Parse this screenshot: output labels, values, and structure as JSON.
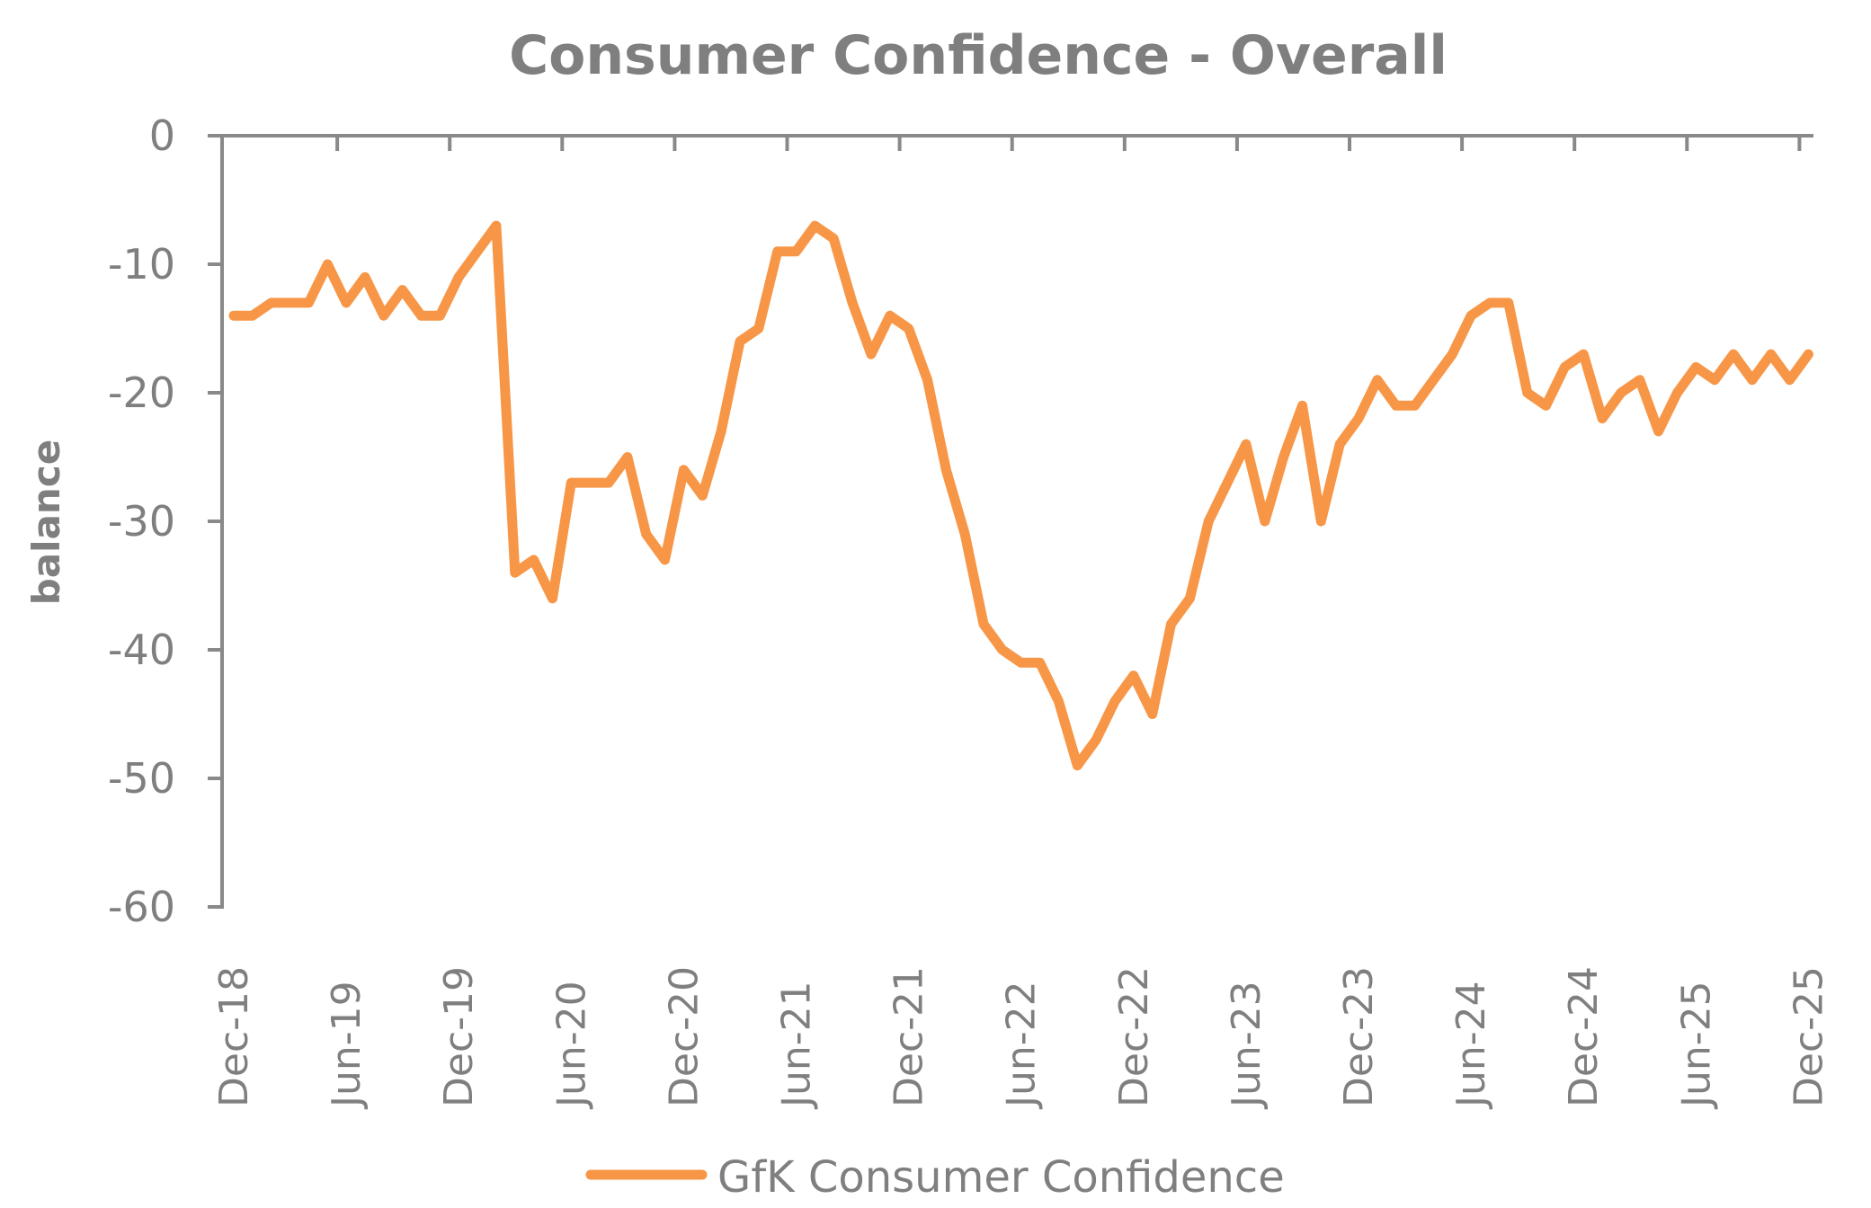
{
  "chart_data": {
    "type": "line",
    "title": "Consumer Confidence - Overall",
    "xlabel": "",
    "ylabel": "balance",
    "ylim": [
      -60,
      0
    ],
    "yticks": [
      0,
      -10,
      -20,
      -30,
      -40,
      -50,
      -60
    ],
    "ytick_labels": [
      "0",
      "-10",
      "-20",
      "-30",
      "-40",
      "-50",
      "-60"
    ],
    "xtick_labels": [
      "Dec-18",
      "Jun-19",
      "Dec-19",
      "Jun-20",
      "Dec-20",
      "Jun-21",
      "Dec-21",
      "Jun-22",
      "Dec-22",
      "Jun-23",
      "Dec-23",
      "Jun-24",
      "Dec-24",
      "Jun-25",
      "Dec-25"
    ],
    "xtick_every_months": 6,
    "x_start": "Dec-18",
    "x_end": "Dec-25",
    "x_axis_position": "top (at y=0)",
    "grid": false,
    "legend_position": "bottom-center",
    "series": [
      {
        "name": "GfK Consumer Confidence",
        "color": "#f79646",
        "x": [
          "Dec-18",
          "Jan-19",
          "Feb-19",
          "Mar-19",
          "Apr-19",
          "May-19",
          "Jun-19",
          "Jul-19",
          "Aug-19",
          "Sep-19",
          "Oct-19",
          "Nov-19",
          "Dec-19",
          "Jan-20",
          "Feb-20",
          "Mar-20",
          "Apr-20",
          "May-20",
          "Jun-20",
          "Jul-20",
          "Aug-20",
          "Sep-20",
          "Oct-20",
          "Nov-20",
          "Dec-20",
          "Jan-21",
          "Feb-21",
          "Mar-21",
          "Apr-21",
          "May-21",
          "Jun-21",
          "Jul-21",
          "Aug-21",
          "Sep-21",
          "Oct-21",
          "Nov-21",
          "Dec-21",
          "Jan-22",
          "Feb-22",
          "Mar-22",
          "Apr-22",
          "May-22",
          "Jun-22",
          "Jul-22",
          "Aug-22",
          "Sep-22",
          "Oct-22",
          "Nov-22",
          "Dec-22",
          "Jan-23",
          "Feb-23",
          "Mar-23",
          "Apr-23",
          "May-23",
          "Jun-23",
          "Jul-23",
          "Aug-23",
          "Sep-23",
          "Oct-23",
          "Nov-23",
          "Dec-23",
          "Jan-24",
          "Feb-24",
          "Mar-24",
          "Apr-24",
          "May-24",
          "Jun-24",
          "Jul-24",
          "Aug-24",
          "Sep-24",
          "Oct-24",
          "Nov-24",
          "Dec-24",
          "Jan-25",
          "Feb-25",
          "Mar-25",
          "Apr-25",
          "May-25",
          "Jun-25",
          "Jul-25",
          "Aug-25",
          "Sep-25",
          "Oct-25",
          "Nov-25",
          "Dec-25"
        ],
        "values": [
          -14,
          -14,
          -13,
          -13,
          -13,
          -10,
          -13,
          -11,
          -14,
          -12,
          -14,
          -14,
          -11,
          -9,
          -7,
          -34,
          -33,
          -36,
          -27,
          -27,
          -27,
          -25,
          -31,
          -33,
          -26,
          -28,
          -23,
          -16,
          -15,
          -9,
          -9,
          -7,
          -8,
          -13,
          -17,
          -14,
          -15,
          -19,
          -26,
          -31,
          -38,
          -40,
          -41,
          -41,
          -44,
          -49,
          -47,
          -44,
          -42,
          -45,
          -38,
          -36,
          -30,
          -27,
          -24,
          -30,
          -25,
          -21,
          -30,
          -24,
          -22,
          -19,
          -21,
          -21,
          -19,
          -17,
          -14,
          -13,
          -13,
          -20,
          -21,
          -18,
          -17,
          -22,
          -20,
          -19,
          -23,
          -20,
          -18,
          -19,
          -17,
          -19,
          -17,
          -19,
          -17
        ]
      }
    ]
  }
}
